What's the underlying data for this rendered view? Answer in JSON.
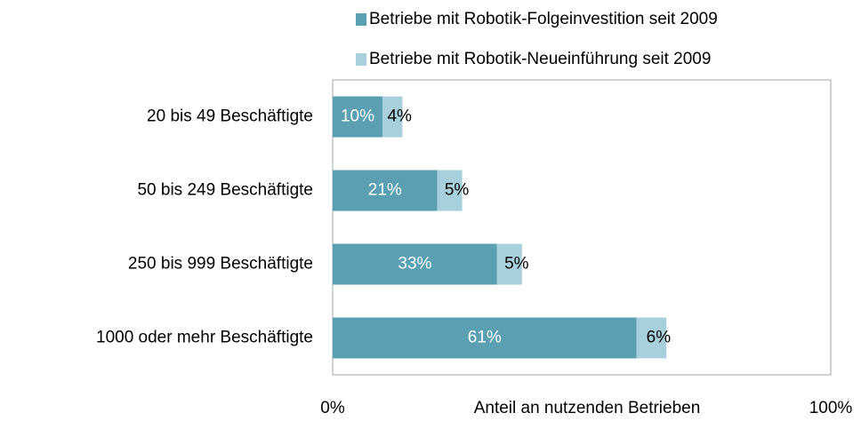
{
  "chart_data": {
    "type": "bar",
    "orientation": "horizontal",
    "stacked": true,
    "x_label": "Anteil an nutzenden Betrieben",
    "categories": [
      "20 bis 49 Beschäftigte",
      "50 bis 249 Beschäftigte",
      "250 bis 999 Beschäftigte",
      "1000 oder mehr Beschäftigte"
    ],
    "series": [
      {
        "name": "Betriebe mit Robotik-Folgeinvestition seit 2009",
        "color": "#5b9fb2",
        "label_color": "#ffffff",
        "values": [
          10,
          21,
          33,
          61
        ],
        "value_labels": [
          "10%",
          "21%",
          "33%",
          "61%"
        ]
      },
      {
        "name": "Betriebe mit Robotik-Neueinführung seit 2009",
        "color": "#a8d0dc",
        "label_color": "#000000",
        "values": [
          4,
          5,
          5,
          6
        ],
        "value_labels": [
          "4%",
          "5%",
          "5%",
          "6%"
        ]
      }
    ],
    "xlim": [
      0,
      100
    ],
    "xticks": [
      {
        "value": 0,
        "label": "0%"
      },
      {
        "value": 100,
        "label": "100%"
      }
    ]
  }
}
